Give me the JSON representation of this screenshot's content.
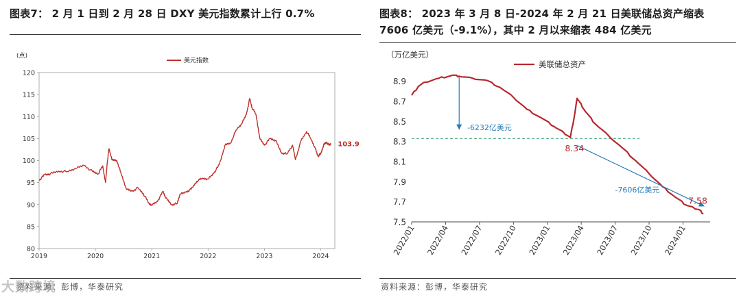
{
  "left": {
    "title": "图表7：  2 月 1 日到 2 月 28 日 DXY 美元指数累计上行 0.7%",
    "source": "资料来源：彭博，华泰研究",
    "chart_data": {
      "type": "line",
      "ylabel": "(点)",
      "ylim": [
        80,
        120
      ],
      "yticks": [
        80,
        85,
        90,
        95,
        100,
        105,
        110,
        115,
        120
      ],
      "xlim": [
        2019.0,
        2024.25
      ],
      "xticks": [
        "2019",
        "2020",
        "2021",
        "2022",
        "2023",
        "2024"
      ],
      "legend_position": "top-center",
      "line_color": "#c0302a",
      "series": [
        {
          "name": "美元指数",
          "x": [
            2019.0,
            2019.1,
            2019.2,
            2019.35,
            2019.5,
            2019.65,
            2019.8,
            2019.95,
            2020.05,
            2020.13,
            2020.18,
            2020.21,
            2020.24,
            2020.3,
            2020.38,
            2020.45,
            2020.55,
            2020.65,
            2020.75,
            2020.85,
            2020.95,
            2021.0,
            2021.1,
            2021.2,
            2021.25,
            2021.35,
            2021.45,
            2021.5,
            2021.6,
            2021.7,
            2021.8,
            2021.9,
            2022.0,
            2022.1,
            2022.2,
            2022.3,
            2022.4,
            2022.5,
            2022.6,
            2022.68,
            2022.74,
            2022.78,
            2022.85,
            2022.92,
            2023.0,
            2023.1,
            2023.2,
            2023.3,
            2023.4,
            2023.5,
            2023.55,
            2023.65,
            2023.75,
            2023.82,
            2023.9,
            2023.95,
            2024.0,
            2024.05,
            2024.1,
            2024.15,
            2024.18
          ],
          "y": [
            95.5,
            96.8,
            97.0,
            97.6,
            97.5,
            98.2,
            98.9,
            97.5,
            97.0,
            98.8,
            95.0,
            99.5,
            102.7,
            100.1,
            100.0,
            97.3,
            93.5,
            93.0,
            93.8,
            92.5,
            90.3,
            89.9,
            90.7,
            93.0,
            91.5,
            90.0,
            90.2,
            92.3,
            92.8,
            93.5,
            95.3,
            96.0,
            95.8,
            97.1,
            99.1,
            103.5,
            104.0,
            107.0,
            108.4,
            110.5,
            114.1,
            112.0,
            110.5,
            105.0,
            103.5,
            105.0,
            104.6,
            101.8,
            101.5,
            103.5,
            100.2,
            104.5,
            106.6,
            105.1,
            102.9,
            101.0,
            101.5,
            103.5,
            104.2,
            103.5,
            103.9
          ]
        }
      ],
      "annotations": [
        {
          "text": "103.9",
          "x": 2024.18,
          "y": 103.9
        }
      ]
    }
  },
  "right": {
    "title": "图表8：  2023 年 3 月 8 日-2024 年 2 月 21 日美联储总资产缩表 7606 亿美元（-9.1%），其中 2 月以来缩表 484 亿美元",
    "source": "资料来源：彭博，华泰研究",
    "chart_data": {
      "type": "line",
      "ylabel": "（万亿美元）",
      "ylim": [
        7.5,
        9.0
      ],
      "yticks": [
        "7.5",
        "7.7",
        "7.9",
        "8.1",
        "8.3",
        "8.5",
        "8.7",
        "8.9"
      ],
      "xlim": [
        2022.0,
        2024.2
      ],
      "xticks": [
        "2022/01",
        "2022/04",
        "2022/07",
        "2022/10",
        "2023/01",
        "2023/04",
        "2023/07",
        "2023/10",
        "2024/01"
      ],
      "legend_position": "top-center",
      "line_color": "#b7282e",
      "arrow_color": "#2a7bb4",
      "reference_line": {
        "y": 8.33,
        "color": "#2e9e6c"
      },
      "series": [
        {
          "name": "美联储总资产",
          "x": [
            2022.0,
            2022.05,
            2022.1,
            2022.2,
            2022.3,
            2022.35,
            2022.45,
            2022.55,
            2022.65,
            2022.75,
            2022.85,
            2022.95,
            2023.05,
            2023.12,
            2023.17,
            2023.2,
            2023.22,
            2023.24,
            2023.28,
            2023.35,
            2023.45,
            2023.55,
            2023.65,
            2023.75,
            2023.85,
            2023.95,
            2024.02,
            2024.08,
            2024.12,
            2024.15
          ],
          "y": [
            8.76,
            8.85,
            8.89,
            8.93,
            8.96,
            8.95,
            8.93,
            8.91,
            8.84,
            8.74,
            8.62,
            8.54,
            8.45,
            8.39,
            8.34,
            8.56,
            8.73,
            8.69,
            8.6,
            8.48,
            8.36,
            8.24,
            8.11,
            7.98,
            7.85,
            7.74,
            7.67,
            7.64,
            7.62,
            7.58
          ]
        }
      ],
      "annotations": [
        {
          "text": "-6232亿美元",
          "x": 2022.45,
          "y": 8.44
        },
        {
          "text": "8.34",
          "x": 2023.17,
          "y": 8.34
        },
        {
          "text": "-7606亿美元",
          "x": 2023.55,
          "y": 7.82
        },
        {
          "text": "7.58",
          "x": 2024.15,
          "y": 7.58
        }
      ]
    }
  },
  "watermark": {
    "text": "大数跨境"
  }
}
